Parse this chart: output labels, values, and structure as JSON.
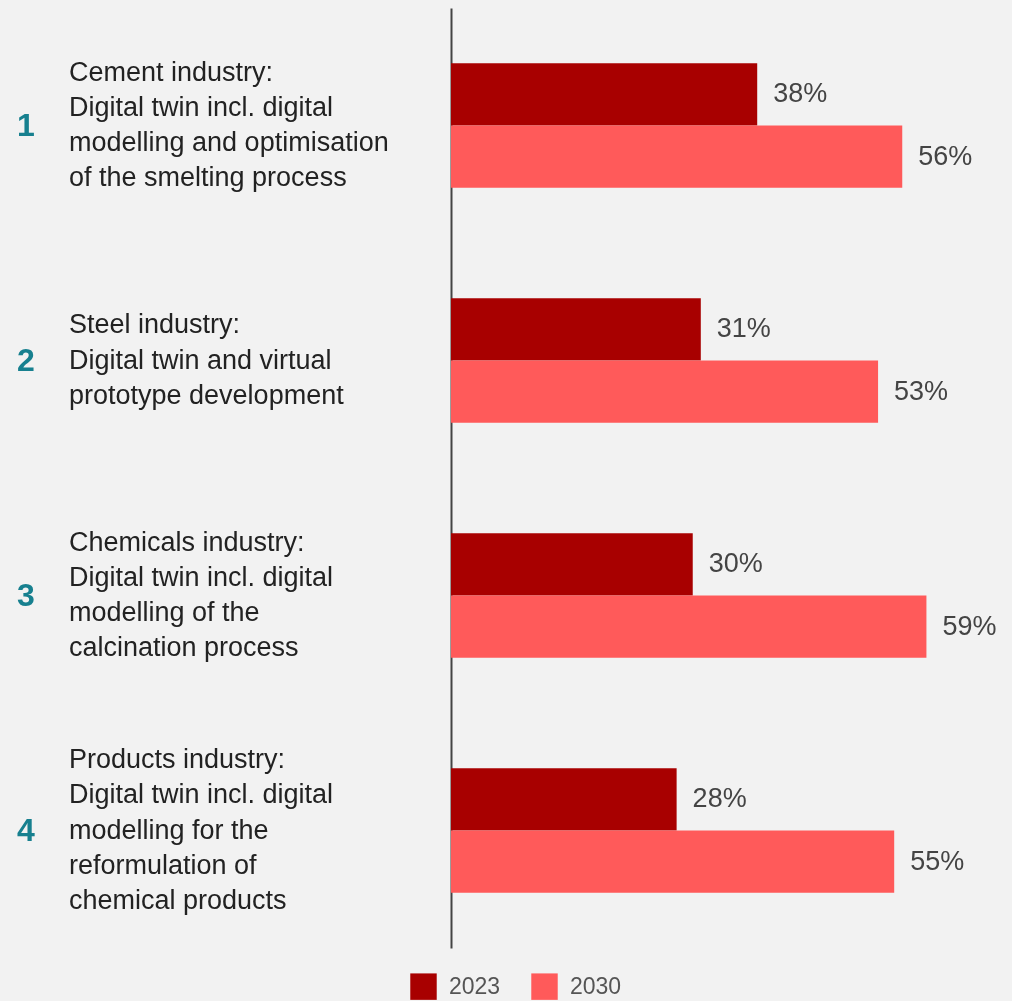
{
  "chart_data": {
    "type": "bar",
    "orientation": "horizontal",
    "categories": [
      "Cement industry:\nDigital twin incl. digital\nmodelling and optimisation\nof the smelting process",
      "Steel industry:\nDigital twin and virtual\nprototype development",
      "Chemicals industry:\nDigital twin incl. digital\nmodelling of the\ncalcination process",
      "Products industry:\nDigital twin incl. digital\nmodelling for the\nreformulation of\nchemical products"
    ],
    "series": [
      {
        "name": "2023",
        "color": "#a80000",
        "values": [
          38,
          31,
          30,
          28
        ],
        "value_labels": [
          "38%",
          "31%",
          "30%",
          "28%"
        ]
      },
      {
        "name": "2030",
        "color": "#ff5a5a",
        "values": [
          56,
          53,
          59,
          55
        ],
        "value_labels": [
          "56%",
          "53%",
          "59%",
          "55%"
        ]
      }
    ],
    "annotations": [
      "1",
      "2",
      "3",
      "4"
    ],
    "legend": "bottom",
    "grid": false
  }
}
